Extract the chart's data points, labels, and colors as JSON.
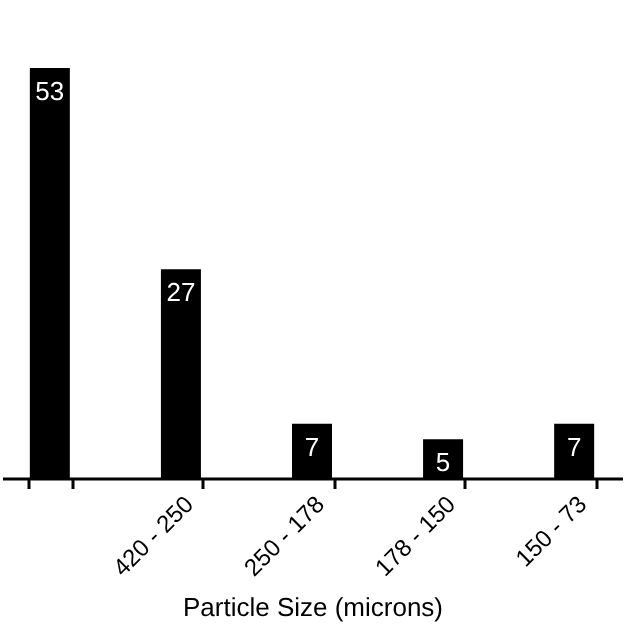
{
  "chart_data": {
    "type": "bar",
    "xlabel": "Particle Size (microns)",
    "categories": [
      null,
      "420 - 250",
      "250 - 178",
      "178 - 150",
      "150 - 73"
    ],
    "series": [
      {
        "color": "#000000",
        "values": [
          53,
          27,
          7,
          5,
          7
        ]
      }
    ],
    "data_labels": true,
    "tick_labels": "x",
    "grid": false
  }
}
